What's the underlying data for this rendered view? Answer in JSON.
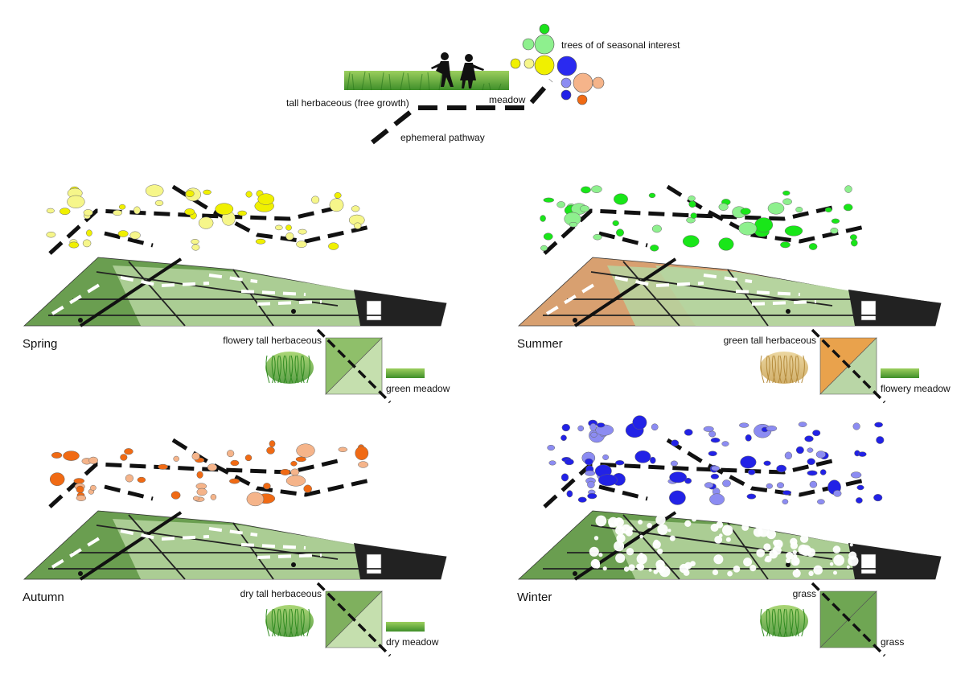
{
  "legend": {
    "trees_label": "trees of of seasonal interest",
    "meadow_label": "meadow",
    "tall_label": "tall herbaceous (free growth)",
    "pathway_label": "ephemeral pathway"
  },
  "panels": [
    {
      "season": "Spring",
      "tree_color": "#f0f000",
      "tree_light": "#f6f68a",
      "swatch_top_label": "flowery tall herbaceous",
      "swatch_bottom_label": "green meadow",
      "swatch_colors": [
        "#8fbf6a",
        "#c5dfae"
      ]
    },
    {
      "season": "Summer",
      "tree_color": "#19e619",
      "tree_light": "#8ef08e",
      "swatch_top_label": "green tall herbaceous",
      "swatch_bottom_label": "flowery meadow",
      "swatch_colors": [
        "#e9a24c",
        "#b9d6a6"
      ]
    },
    {
      "season": "Autumn",
      "tree_color": "#f06a14",
      "tree_light": "#f5b48a",
      "swatch_top_label": "dry tall herbaceous",
      "swatch_bottom_label": "dry meadow",
      "swatch_colors": [
        "#7fb05e",
        "#c5dfae"
      ]
    },
    {
      "season": "Winter",
      "tree_color": "#2222e6",
      "tree_light": "#8c8cf2",
      "swatch_top_label": "grass",
      "swatch_bottom_label": "grass",
      "swatch_colors": [
        "#6fa653",
        "#6fa653"
      ]
    }
  ],
  "colors": {
    "dark_green": "#6a9e50",
    "light_green": "#b6d5a0",
    "summer_orange": "#d8a070",
    "building": "#222222",
    "path": "#111111"
  }
}
